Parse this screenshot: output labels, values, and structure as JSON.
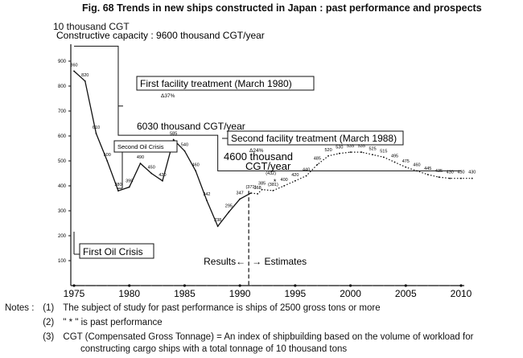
{
  "figure_title": "Fig. 68 Trends in new ships constructed in Japan : past performance and prospects",
  "chart_data": {
    "type": "line",
    "title": "Fig. 68 Trends in new ships constructed in Japan : past performance and prospects",
    "ylabel": "10 thousand CGT",
    "xlabel": "",
    "xlim": [
      1974.5,
      2010.5
    ],
    "ylim": [
      0,
      1000
    ],
    "x_ticks": [
      "1975",
      "1980",
      "1985",
      "1990",
      "1995",
      "2000",
      "2005",
      "2010"
    ],
    "y_ticks": [
      "100",
      "200",
      "300",
      "400",
      "500",
      "600",
      "700",
      "800",
      "900"
    ],
    "grid": false,
    "series": [
      {
        "style": "solid",
        "points": [
          {
            "x": 1975,
            "y": 860,
            "label": "860"
          },
          {
            "x": 1976,
            "y": 820,
            "label": "820"
          },
          {
            "x": 1977,
            "y": 610,
            "label": "610"
          },
          {
            "x": 1978,
            "y": 500,
            "label": "500"
          },
          {
            "x": 1979,
            "y": 380,
            "label": "380"
          },
          {
            "x": 1980,
            "y": 395,
            "label": "395"
          },
          {
            "x": 1981,
            "y": 490,
            "label": "490"
          },
          {
            "x": 1982,
            "y": 450,
            "label": "450"
          },
          {
            "x": 1983,
            "y": 420,
            "label": "420"
          },
          {
            "x": 1984,
            "y": 585,
            "label": "585"
          },
          {
            "x": 1985,
            "y": 540,
            "label": "540"
          },
          {
            "x": 1986,
            "y": 460,
            "label": "460"
          },
          {
            "x": 1987,
            "y": 342,
            "label": "342"
          },
          {
            "x": 1988,
            "y": 238,
            "label": "238"
          },
          {
            "x": 1989,
            "y": 295,
            "label": "295"
          },
          {
            "x": 1990,
            "y": 347,
            "label": "347"
          },
          {
            "x": 1991,
            "y": 371,
            "label": "(371)"
          }
        ]
      },
      {
        "style": "dotted",
        "points": [
          {
            "x": 1991,
            "y": 371,
            "label": ""
          },
          {
            "x": 1991.6,
            "y": 368,
            "label": "368"
          },
          {
            "x": 1992,
            "y": 385,
            "label": "385"
          },
          {
            "x": 1993,
            "y": 381,
            "label": "(381)"
          },
          {
            "x": 1994,
            "y": 400,
            "label": "400"
          },
          {
            "x": 1995,
            "y": 420,
            "label": "420"
          },
          {
            "x": 1996,
            "y": 440,
            "label": "440"
          },
          {
            "x": 1997,
            "y": 485,
            "label": "485"
          },
          {
            "x": 1998,
            "y": 520,
            "label": "520"
          },
          {
            "x": 1999,
            "y": 530,
            "label": "530"
          },
          {
            "x": 2000,
            "y": 535,
            "label": "535"
          },
          {
            "x": 2001,
            "y": 535,
            "label": "535"
          },
          {
            "x": 2002,
            "y": 525,
            "label": "525"
          },
          {
            "x": 2003,
            "y": 515,
            "label": "515"
          },
          {
            "x": 2004,
            "y": 495,
            "label": "495"
          },
          {
            "x": 2005,
            "y": 475,
            "label": "475"
          },
          {
            "x": 2006,
            "y": 460,
            "label": "460"
          },
          {
            "x": 2007,
            "y": 445,
            "label": "445"
          },
          {
            "x": 2008,
            "y": 435,
            "label": "435"
          },
          {
            "x": 2009,
            "y": 430,
            "label": "430"
          },
          {
            "x": 2010,
            "y": 430,
            "label": "430"
          },
          {
            "x": 2011,
            "y": 430,
            "label": "430"
          }
        ]
      }
    ],
    "past_performance_marks": [
      {
        "x": 1992.8,
        "y": 432,
        "label": "(432)"
      }
    ],
    "capacity_steps": [
      {
        "from": 1975,
        "to": 1979,
        "value": 960
      },
      {
        "from": 1979,
        "to": 1988,
        "value": 603
      },
      {
        "from": 1988,
        "to": 2010,
        "value": 460
      }
    ],
    "annotations": {
      "capacity_label": "Constructive capacity : 9600 thousand CGT/year",
      "first_facility": "First facility treatment (March 1980)",
      "first_facility_pct": "Δ37%",
      "capacity_6030": "6030 thousand CGT/year",
      "second_facility": "Second facility treatment (March 1988)",
      "second_facility_pct": "Δ24%",
      "capacity_4600_line1": "4600 thousand",
      "capacity_4600_line2": "CGT/year",
      "second_oil_crisis": "Second Oil Crisis",
      "first_oil_crisis": "First Oil Crisis",
      "results": "Results←",
      "estimates": "→ Estimates"
    }
  },
  "notes": {
    "header": "Notes :",
    "items": [
      {
        "num": "(1)",
        "text": "The subject of study for past performance is ships of 2500 gross tons or more"
      },
      {
        "num": "(2)",
        "text": "\" * \" is past performance"
      },
      {
        "num": "(3)",
        "text": "CGT (Compensated Gross Tonnage) = An index of shipbuilding based on the volume of workload for"
      }
    ],
    "continuation": "constructing cargo ships with a total tonnage of 10 thousand tons"
  }
}
